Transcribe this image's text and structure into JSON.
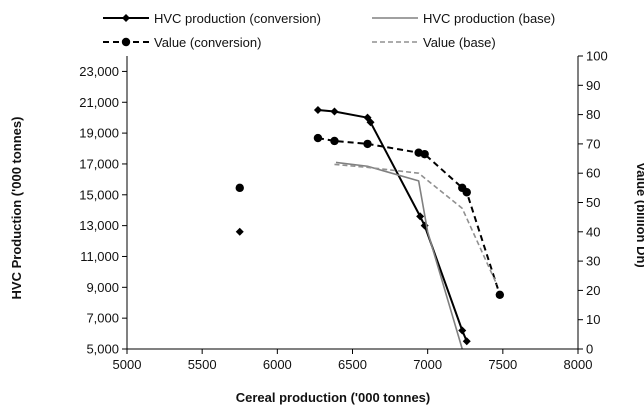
{
  "chart_data": {
    "type": "line",
    "xlabel": "Cereal production ('000 tonnes)",
    "ylabel_left": "HVC Production ('000 tonnes)",
    "ylabel_right": "Value (billion Dh)",
    "xlim": [
      5000,
      8000
    ],
    "xticks": [
      5000,
      5500,
      6000,
      6500,
      7000,
      7500,
      8000
    ],
    "xtick_labels": [
      "5000",
      "5500",
      "6000",
      "6500",
      "7000",
      "7500",
      "8000"
    ],
    "ylim_left": [
      5000,
      24000
    ],
    "yticks_left": [
      5000,
      7000,
      9000,
      11000,
      13000,
      15000,
      17000,
      19000,
      21000,
      23000
    ],
    "ytick_labels_left": [
      "5,000",
      "7,000",
      "9,000",
      "11,000",
      "13,000",
      "15,000",
      "17,000",
      "19,000",
      "21,000",
      "23,000"
    ],
    "ylim_right": [
      0,
      100
    ],
    "yticks_right": [
      0,
      10,
      20,
      30,
      40,
      50,
      60,
      70,
      80,
      90,
      100
    ],
    "ytick_labels_right": [
      "0",
      "10",
      "20",
      "30",
      "40",
      "50",
      "60",
      "70",
      "80",
      "90",
      "100"
    ],
    "grid": false,
    "legend_position": "top",
    "series": [
      {
        "name": "HVC production (conversion)",
        "axis": "left",
        "style": "solid",
        "marker": "diamond",
        "color": "#000000",
        "isolated_points": [
          [
            5750,
            12600
          ]
        ],
        "points": [
          [
            6270,
            20500
          ],
          [
            6380,
            20400
          ],
          [
            6600,
            20000
          ],
          [
            6620,
            19700
          ],
          [
            6950,
            13600
          ],
          [
            6980,
            13000
          ],
          [
            7230,
            6200
          ],
          [
            7260,
            5500
          ]
        ]
      },
      {
        "name": "HVC production (base)",
        "axis": "left",
        "style": "solid",
        "marker": "none",
        "color": "#808080",
        "isolated_points": [],
        "points": [
          [
            6390,
            17100
          ],
          [
            6600,
            16850
          ],
          [
            6940,
            15900
          ],
          [
            7000,
            12600
          ],
          [
            7230,
            5000
          ]
        ]
      },
      {
        "name": "Value (conversion)",
        "axis": "right",
        "style": "dashed",
        "marker": "circle",
        "color": "#000000",
        "isolated_points": [
          [
            5750,
            55
          ]
        ],
        "points": [
          [
            6270,
            72
          ],
          [
            6380,
            71
          ],
          [
            6600,
            70
          ],
          [
            6940,
            67
          ],
          [
            6980,
            66.5
          ],
          [
            7230,
            55
          ],
          [
            7260,
            53.5
          ],
          [
            7480,
            18.5
          ]
        ]
      },
      {
        "name": "Value (base)",
        "axis": "right",
        "style": "dashed",
        "marker": "none",
        "color": "#909090",
        "isolated_points": [],
        "points": [
          [
            6380,
            63
          ],
          [
            6600,
            62
          ],
          [
            6940,
            60
          ],
          [
            7230,
            48
          ],
          [
            7460,
            22
          ]
        ]
      }
    ]
  }
}
